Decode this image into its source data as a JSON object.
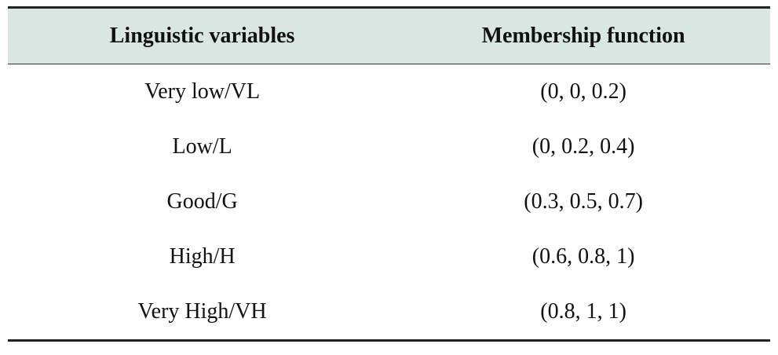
{
  "table": {
    "headers": [
      "Linguistic variables",
      "Membership function"
    ],
    "rows": [
      [
        "Very low/VL",
        "(0, 0, 0.2)"
      ],
      [
        "Low/L",
        "(0, 0.2, 0.4)"
      ],
      [
        "Good/G",
        "(0.3, 0.5, 0.7)"
      ],
      [
        "High/H",
        "(0.6, 0.8, 1)"
      ],
      [
        "Very High/VH",
        "(0.8, 1, 1)"
      ]
    ]
  },
  "colors": {
    "header_background": "#d9e6e2",
    "rule": "#222222"
  }
}
